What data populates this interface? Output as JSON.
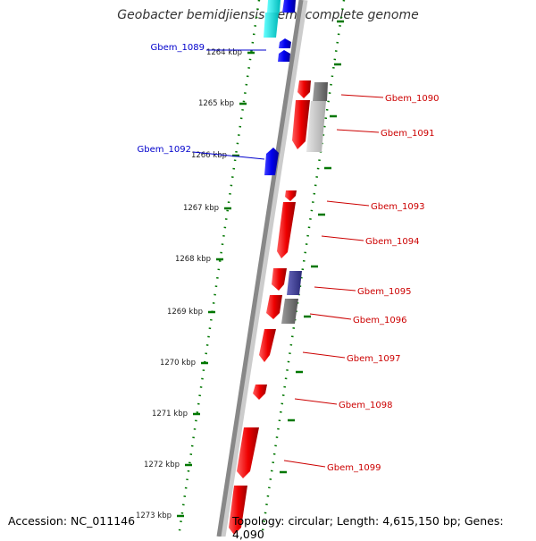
{
  "title": "Geobacter bemidjiensis Bem, complete genome",
  "footer": {
    "accession": "Accession: NC_011146",
    "summary": "Topology: circular; Length: 4,615,150 bp; Genes: 4,090"
  },
  "colors": {
    "forward_gene": "#0000ee",
    "reverse_gene": "#ff0000",
    "cds_grey": "#777777",
    "cds_purple": "#44449a",
    "cds_light": "#c8c8c8",
    "cds_cyan": "#00dddd",
    "tick_green": "#007700",
    "backbone": "#888888",
    "label_blue": "#0000cc",
    "label_red": "#cc0000"
  },
  "kbp_ticks": [
    "1264 kbp",
    "1265 kbp",
    "1266 kbp",
    "1267 kbp",
    "1268 kbp",
    "1269 kbp",
    "1270 kbp",
    "1271 kbp",
    "1272 kbp",
    "1273 kbp"
  ],
  "genes_forward": [
    "Gbem_1089",
    "Gbem_1092"
  ],
  "genes_reverse": [
    "Gbem_1090",
    "Gbem_1091",
    "Gbem_1093",
    "Gbem_1094",
    "Gbem_1095",
    "Gbem_1096",
    "Gbem_1097",
    "Gbem_1098",
    "Gbem_1099"
  ]
}
